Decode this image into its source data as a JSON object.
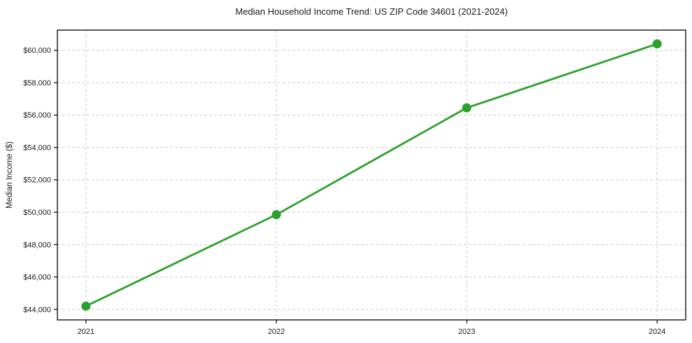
{
  "page": {
    "background": "#ffffff",
    "text_color": "#1a1a1a"
  },
  "chart_data": {
    "type": "line",
    "title": "Median Household Income Trend: US ZIP Code 34601 (2021-2024)",
    "xlabel": "",
    "ylabel": "Median Income ($)",
    "x": [
      2021,
      2022,
      2023,
      2024
    ],
    "series": [
      {
        "name": "Median Household Income",
        "values": [
          44200,
          49850,
          56450,
          60400
        ],
        "color": "#2ca02c",
        "marker": "circle",
        "line_width": 2.8,
        "marker_radius": 6.5
      }
    ],
    "xticks": {
      "values": [
        2021,
        2022,
        2023,
        2024
      ],
      "labels": [
        "2021",
        "2022",
        "2023",
        "2024"
      ]
    },
    "yticks": {
      "values": [
        44000,
        46000,
        48000,
        50000,
        52000,
        54000,
        56000,
        58000,
        60000
      ],
      "labels": [
        "$44,000",
        "$46,000",
        "$48,000",
        "$50,000",
        "$52,000",
        "$54,000",
        "$56,000",
        "$58,000",
        "$60,000"
      ]
    },
    "xlim": [
      2020.85,
      2024.15
    ],
    "ylim": [
      43350,
      61250
    ],
    "grid": true,
    "grid_color": "#cccccc",
    "grid_style": "dashed",
    "spine_color": "#000000",
    "legend": "none"
  }
}
